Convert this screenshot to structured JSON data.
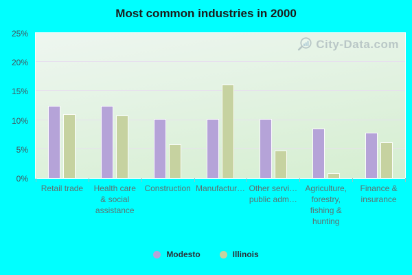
{
  "watermark": {
    "text": "City-Data.com"
  },
  "colors": {
    "page_background": "#00ffff",
    "plot_gradient_top": "#eef6f0",
    "plot_gradient_bottom": "#d5eed0",
    "gridline": "#e7dfee",
    "modesto_bar": "#b5a3d8",
    "illinois_bar": "#c6d2a0",
    "title_text": "#1b1b1b",
    "axis_text": "#5d7070",
    "watermark_text": "#96a4ad"
  },
  "chart_data": {
    "type": "bar",
    "title": "Most common industries in 2000",
    "categories": [
      "Retail trade",
      "Health care\n& social\nassistance",
      "Construction",
      "Manufactur…",
      "Other servi…\npublic adm…",
      "Agriculture,\nforestry,\nfishing &\nhunting",
      "Finance &\ninsurance"
    ],
    "series": [
      {
        "name": "Modesto",
        "color": "#b5a3d8",
        "values": [
          12.4,
          12.4,
          10.2,
          10.2,
          10.2,
          8.5,
          7.8
        ]
      },
      {
        "name": "Illinois",
        "color": "#c6d2a0",
        "values": [
          11.0,
          10.8,
          5.8,
          16.1,
          4.8,
          0.8,
          6.2
        ]
      }
    ],
    "xlabel": "",
    "ylabel": "",
    "ylim": [
      0,
      25
    ],
    "yticks": [
      0,
      5,
      10,
      15,
      20,
      25
    ],
    "ytick_labels": [
      "0%",
      "5%",
      "10%",
      "15%",
      "20%",
      "25%"
    ],
    "grid": true,
    "legend_position": "bottom"
  }
}
